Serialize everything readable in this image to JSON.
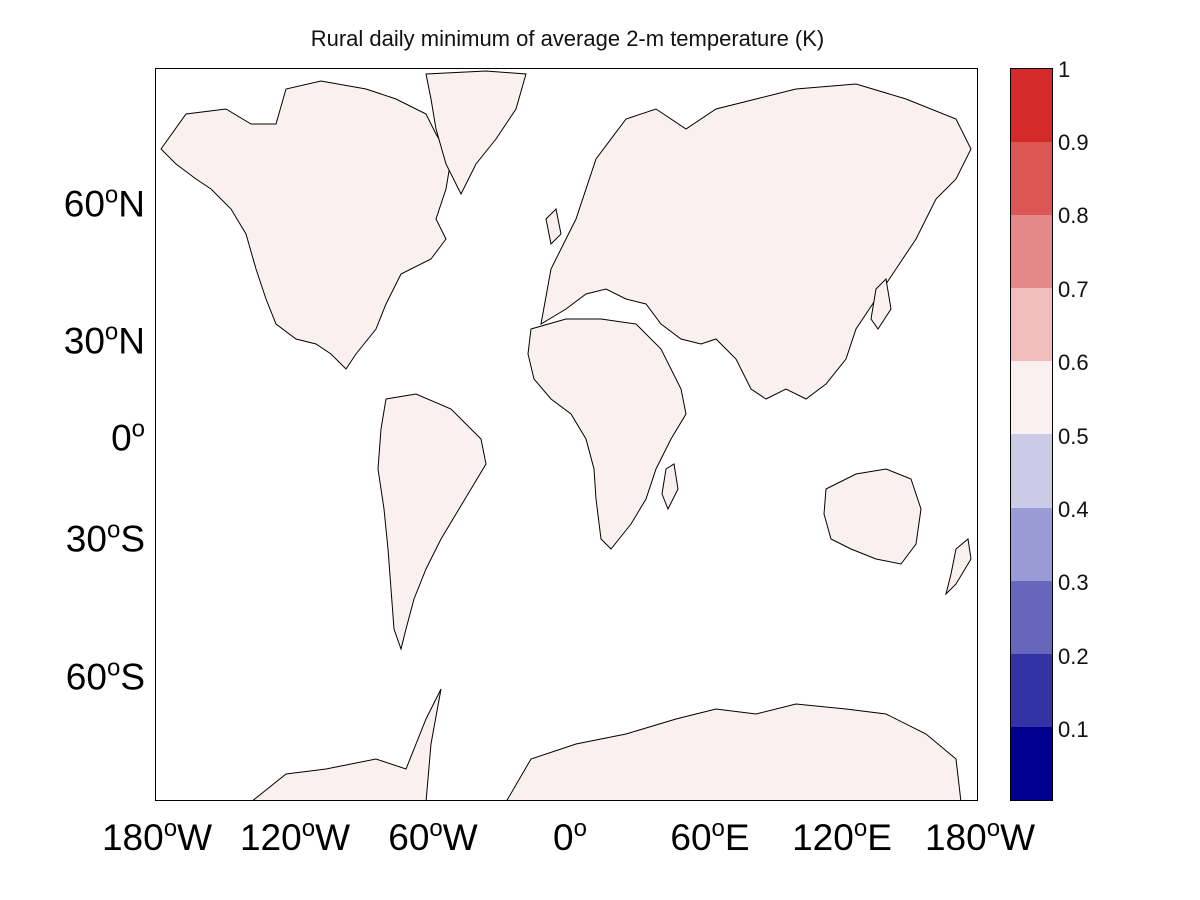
{
  "title": "Rural daily minimum of average 2-m temperature (K)",
  "map": {
    "projection": "Mercator",
    "land_fill": "#fbf0f0",
    "ocean_fill": "#ffffff",
    "coastline_color": "#000000",
    "lat_ticks": [
      {
        "deg": "60",
        "unit": "o",
        "hemi": "N"
      },
      {
        "deg": "30",
        "unit": "o",
        "hemi": "N"
      },
      {
        "deg": "0",
        "unit": "o",
        "hemi": ""
      },
      {
        "deg": "30",
        "unit": "o",
        "hemi": "S"
      },
      {
        "deg": "60",
        "unit": "o",
        "hemi": "S"
      }
    ],
    "lon_ticks": [
      {
        "deg": "180",
        "unit": "o",
        "hemi": "W"
      },
      {
        "deg": "120",
        "unit": "o",
        "hemi": "W"
      },
      {
        "deg": "60",
        "unit": "o",
        "hemi": "W"
      },
      {
        "deg": "0",
        "unit": "o",
        "hemi": ""
      },
      {
        "deg": "60",
        "unit": "o",
        "hemi": "E"
      },
      {
        "deg": "120",
        "unit": "o",
        "hemi": "E"
      },
      {
        "deg": "180",
        "unit": "o",
        "hemi": "W"
      }
    ]
  },
  "colorbar": {
    "labels": [
      "1",
      "0.9",
      "0.8",
      "0.7",
      "0.6",
      "0.5",
      "0.4",
      "0.3",
      "0.2",
      "0.1"
    ],
    "colors": [
      "#d42a2a",
      "#dd5555",
      "#e58888",
      "#f0bcbc",
      "#fbf0f0",
      "#cbcbe8",
      "#9a9ad6",
      "#6666bd",
      "#3333a6",
      "#000090"
    ]
  }
}
